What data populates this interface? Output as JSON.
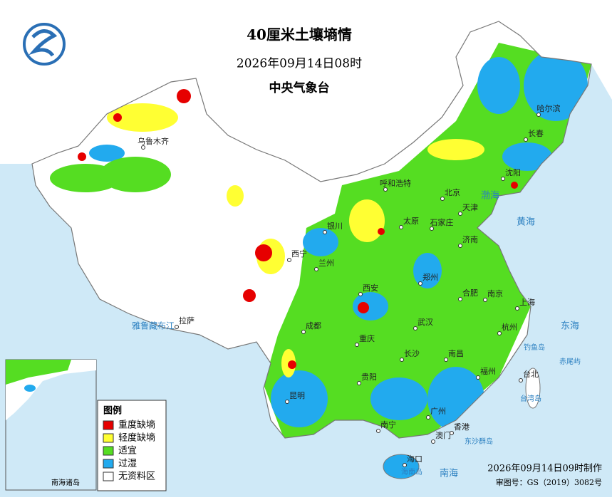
{
  "header": {
    "title": "40厘米土壤墒情",
    "date": "2026年09月14日08时",
    "agency": "中央气象台"
  },
  "legend": {
    "title": "图例",
    "items": [
      {
        "label": "重度缺墒",
        "color": "#e60000"
      },
      {
        "label": "轻度缺墒",
        "color": "#ffff33"
      },
      {
        "label": "适宜",
        "color": "#55dd22"
      },
      {
        "label": "过湿",
        "color": "#22aaee"
      },
      {
        "label": "无资料区",
        "color": "#ffffff"
      }
    ]
  },
  "cities": [
    "乌鲁木齐",
    "拉萨",
    "西宁",
    "兰州",
    "银川",
    "呼和浩特",
    "北京",
    "天津",
    "石家庄",
    "太原",
    "济南",
    "郑州",
    "西安",
    "成都",
    "重庆",
    "武汉",
    "合肥",
    "南京",
    "上海",
    "杭州",
    "长沙",
    "南昌",
    "福州",
    "台北",
    "贵阳",
    "昆明",
    "南宁",
    "广州",
    "香港",
    "澳门",
    "海口",
    "哈尔滨",
    "长春",
    "沈阳"
  ],
  "map_labels": [
    "渤海",
    "黄海",
    "东海",
    "南海",
    "雅鲁藏布江",
    "东沙群岛",
    "钓鱼岛",
    "赤尾屿",
    "台湾岛",
    "海南岛"
  ],
  "inset": {
    "label": "南海诸岛"
  },
  "footer": {
    "made": "2026年09月14日09时制作",
    "approval": "审图号：GS（2019）3082号"
  }
}
